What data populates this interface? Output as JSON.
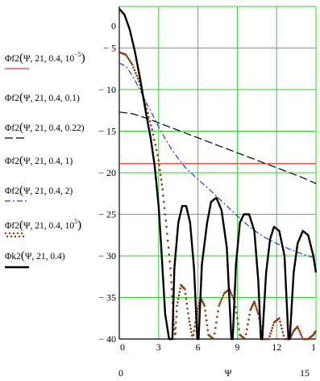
{
  "chart_data": {
    "type": "line",
    "xlabel": "Ψ",
    "ylabel": "",
    "xlim": [
      0,
      15
    ],
    "ylim": [
      -40,
      0
    ],
    "grid": true,
    "legend_placement": "left",
    "x_ticks": [
      "0",
      "3",
      "6",
      "9",
      "12",
      "1"
    ],
    "y_ticks": [
      "0",
      "− 5",
      "− 10",
      "− 15",
      "− 20",
      "− 25",
      "− 30",
      "− 35",
      "− 40"
    ],
    "below_axis_labels": {
      "left": "0",
      "center": "Ψ",
      "right": "15"
    },
    "legend": [
      {
        "label_main": "Φf2",
        "label_args": "Ψ, 21, 0.4, 10",
        "label_exp": "−5",
        "color": "#e8302a",
        "dash": "solid"
      },
      {
        "label_main": "Φf2",
        "label_args": "Ψ, 21, 0.4, 0.1",
        "label_exp": "",
        "color": "#000000",
        "dash": "none"
      },
      {
        "label_main": "Φf2",
        "label_args": "Ψ, 21, 0.4, 0.22",
        "label_exp": "",
        "color": "#000000",
        "dash": "longdash"
      },
      {
        "label_main": "Φf2",
        "label_args": "Ψ, 21, 0.4, 1",
        "label_exp": "",
        "color": "#000000",
        "dash": "none"
      },
      {
        "label_main": "Φf2",
        "label_args": "Ψ, 21, 0.4, 2",
        "label_exp": "",
        "color": "#1a3ce0",
        "dash": "dashdot"
      },
      {
        "label_main": "Φf2",
        "label_args": "Ψ, 21, 0.4, 10",
        "label_exp": "5",
        "color": "#8b3a10",
        "dash": "dotted"
      },
      {
        "label_main": "Φk2",
        "label_args": "Ψ, 21, 0.4",
        "label_exp": "",
        "color": "#000000",
        "dash": "solidthick"
      }
    ],
    "series": [
      {
        "color": "#e8302a",
        "dash": "solid",
        "x": [
          0,
          15
        ],
        "y": [
          -18.9,
          -18.9
        ]
      },
      {
        "color": "#000000",
        "dash": "longdash",
        "x": [
          0,
          1,
          2,
          3,
          4,
          5,
          6,
          7,
          8,
          9,
          10,
          11,
          12,
          13,
          14,
          15
        ],
        "y": [
          -12.7,
          -12.9,
          -13.4,
          -14.0,
          -14.6,
          -15.2,
          -15.8,
          -16.4,
          -17.0,
          -17.6,
          -18.2,
          -18.8,
          -19.4,
          -20.0,
          -20.6,
          -21.3
        ]
      },
      {
        "color": "#1a3ce0",
        "dash": "dashdot",
        "x": [
          0,
          0.5,
          1,
          1.5,
          2,
          2.5,
          3,
          3.5,
          4,
          4.5,
          5,
          6,
          7,
          8,
          9,
          10,
          11,
          12,
          13,
          14,
          15
        ],
        "y": [
          -6.8,
          -7.2,
          -8.3,
          -9.8,
          -11.4,
          -12.9,
          -14.5,
          -15.9,
          -17.2,
          -18.3,
          -19.3,
          -20.8,
          -22.2,
          -23.7,
          -25.2,
          -26.6,
          -27.7,
          -28.5,
          -29.2,
          -29.8,
          -30.3
        ]
      },
      {
        "color": "#8b3a10",
        "dash": "dotted",
        "x": [
          0,
          0.5,
          1,
          1.5,
          2,
          2.5,
          3,
          3.3,
          3.6,
          3.9,
          4.1,
          4.25,
          4.4,
          4.7,
          5.0,
          5.3,
          5.6,
          5.9,
          6.2,
          6.5,
          6.8,
          7.2,
          7.6,
          8.0,
          8.4,
          8.8,
          9.2,
          9.6,
          10.0,
          10.3,
          10.6,
          11.0,
          11.4,
          11.8,
          12.2,
          12.6,
          13.0,
          13.3,
          13.6,
          14.0,
          14.4,
          14.8,
          15
        ],
        "y": [
          -5.5,
          -5.8,
          -7.0,
          -9.0,
          -11.8,
          -14.8,
          -18.5,
          -22.0,
          -26.5,
          -31.5,
          -36.5,
          -40,
          -36.0,
          -33.5,
          -34.0,
          -37.5,
          -40,
          -37.0,
          -35.0,
          -36.0,
          -39.5,
          -40,
          -36.0,
          -34.5,
          -34.0,
          -35.5,
          -39.5,
          -40,
          -36.5,
          -35.5,
          -37.0,
          -40,
          -40,
          -38.0,
          -37.5,
          -40,
          -40,
          -39.0,
          -38.5,
          -40,
          -40,
          -39.5,
          -39.0
        ]
      }
    ],
    "thick_series": {
      "color": "#000000",
      "note": "Φk2 sinc-like main lobe and sidelobes",
      "x": [
        0,
        0.4,
        0.8,
        1.2,
        1.6,
        2.0,
        2.4,
        2.7,
        3.0,
        3.2,
        3.5,
        3.8,
        3.95,
        4.05,
        4.2,
        4.5,
        4.8,
        5.1,
        5.4,
        5.7,
        5.95,
        6.05,
        6.3,
        6.7,
        7.0,
        7.4,
        7.8,
        8.2,
        8.55,
        8.65,
        8.9,
        9.2,
        9.5,
        9.9,
        10.3,
        10.6,
        10.8,
        10.9,
        11.2,
        11.5,
        11.8,
        12.2,
        12.6,
        12.9,
        13.0,
        13.3,
        13.6,
        14.0,
        14.4,
        14.8,
        15
      ],
      "y": [
        -0.3,
        -1.0,
        -2.8,
        -5.5,
        -8.8,
        -12.5,
        -15.9,
        -19.2,
        -24.0,
        -29.0,
        -37.0,
        -40,
        -40,
        -40,
        -31.5,
        -26.0,
        -24.0,
        -24.0,
        -26.0,
        -31.5,
        -40,
        -40,
        -31.0,
        -26.0,
        -23.5,
        -23.0,
        -24.5,
        -29.0,
        -40,
        -40,
        -31.0,
        -26.0,
        -25.0,
        -25.0,
        -27.0,
        -33.0,
        -40,
        -40,
        -32.0,
        -28.0,
        -26.5,
        -27.0,
        -30.0,
        -40,
        -40,
        -32.0,
        -28.5,
        -27.0,
        -27.5,
        -30.0,
        -32.0
      ]
    }
  }
}
